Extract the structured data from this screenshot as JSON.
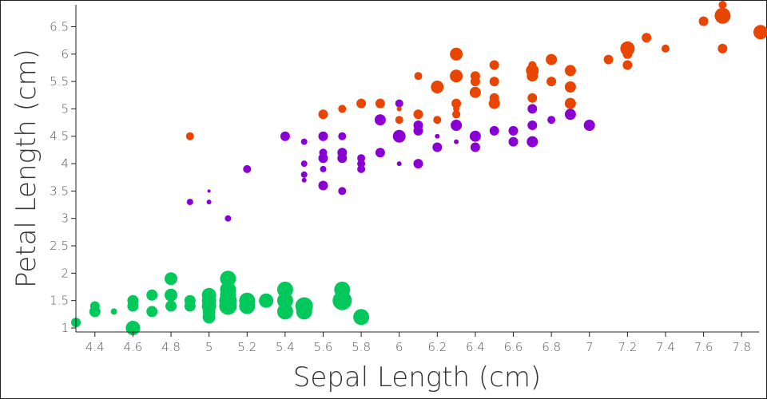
{
  "chart_data": {
    "type": "scatter",
    "title": "",
    "xlabel": "Sepal Length (cm)",
    "ylabel": "Petal Length (cm)",
    "xlim": [
      4.3,
      7.9
    ],
    "ylim": [
      1.0,
      6.9
    ],
    "x_ticks": [
      "4.4",
      "4.6",
      "4.8",
      "5",
      "5.2",
      "5.4",
      "5.6",
      "5.8",
      "6",
      "6.2",
      "6.4",
      "6.6",
      "6.8",
      "7",
      "7.2",
      "7.4",
      "7.6",
      "7.8"
    ],
    "y_ticks": [
      "1",
      "1.5",
      "2",
      "2.5",
      "3",
      "3.5",
      "4",
      "4.5",
      "5",
      "5.5",
      "6",
      "6.5"
    ],
    "grid": false,
    "legend": "none",
    "size_encoding": "point size varies by a third variable",
    "series": [
      {
        "color": "#00c85a",
        "points": [
          [
            4.3,
            1.1,
            6
          ],
          [
            4.4,
            1.4,
            6
          ],
          [
            4.4,
            1.3,
            7
          ],
          [
            4.5,
            1.3,
            4
          ],
          [
            4.6,
            1.5,
            7
          ],
          [
            4.6,
            1.4,
            7
          ],
          [
            4.6,
            1.0,
            9
          ],
          [
            4.7,
            1.6,
            7
          ],
          [
            4.7,
            1.3,
            7
          ],
          [
            4.8,
            1.9,
            8
          ],
          [
            4.8,
            1.6,
            8
          ],
          [
            4.8,
            1.4,
            7
          ],
          [
            4.9,
            1.5,
            7
          ],
          [
            4.9,
            1.4,
            7
          ],
          [
            5.0,
            1.6,
            9
          ],
          [
            5.0,
            1.5,
            9
          ],
          [
            5.0,
            1.4,
            9
          ],
          [
            5.0,
            1.3,
            8
          ],
          [
            5.0,
            1.2,
            8
          ],
          [
            5.1,
            1.9,
            10
          ],
          [
            5.1,
            1.7,
            10
          ],
          [
            5.1,
            1.6,
            10
          ],
          [
            5.1,
            1.5,
            11
          ],
          [
            5.1,
            1.4,
            11
          ],
          [
            5.2,
            1.5,
            10
          ],
          [
            5.2,
            1.4,
            10
          ],
          [
            5.3,
            1.5,
            9
          ],
          [
            5.4,
            1.7,
            10
          ],
          [
            5.4,
            1.5,
            10
          ],
          [
            5.4,
            1.3,
            10
          ],
          [
            5.5,
            1.4,
            11
          ],
          [
            5.5,
            1.3,
            10
          ],
          [
            5.7,
            1.7,
            10
          ],
          [
            5.7,
            1.5,
            12
          ],
          [
            5.8,
            1.2,
            10
          ]
        ]
      },
      {
        "color": "#8a00d4",
        "points": [
          [
            4.9,
            3.3,
            4
          ],
          [
            5.0,
            3.5,
            2
          ],
          [
            5.0,
            3.3,
            3
          ],
          [
            5.1,
            3.0,
            4
          ],
          [
            5.2,
            3.9,
            5
          ],
          [
            5.4,
            4.5,
            6
          ],
          [
            5.5,
            4.4,
            4
          ],
          [
            5.5,
            4.0,
            4
          ],
          [
            5.5,
            3.8,
            4
          ],
          [
            5.5,
            3.7,
            3
          ],
          [
            5.6,
            4.5,
            6
          ],
          [
            5.6,
            4.2,
            5
          ],
          [
            5.6,
            4.1,
            6
          ],
          [
            5.6,
            3.9,
            4
          ],
          [
            5.6,
            3.6,
            6
          ],
          [
            5.7,
            4.5,
            5
          ],
          [
            5.7,
            4.2,
            6
          ],
          [
            5.7,
            4.1,
            6
          ],
          [
            5.7,
            3.5,
            5
          ],
          [
            5.8,
            4.1,
            5
          ],
          [
            5.8,
            4.0,
            5
          ],
          [
            5.8,
            3.9,
            5
          ],
          [
            5.9,
            4.8,
            7
          ],
          [
            5.9,
            4.2,
            6
          ],
          [
            6.0,
            5.1,
            5
          ],
          [
            6.0,
            5.0,
            3
          ],
          [
            6.0,
            4.5,
            8
          ],
          [
            6.0,
            4.0,
            3
          ],
          [
            6.1,
            4.7,
            6
          ],
          [
            6.1,
            4.6,
            6
          ],
          [
            6.1,
            4.0,
            6
          ],
          [
            6.2,
            4.5,
            3
          ],
          [
            6.2,
            4.3,
            6
          ],
          [
            6.3,
            4.9,
            5
          ],
          [
            6.3,
            4.7,
            7
          ],
          [
            6.3,
            4.4,
            3
          ],
          [
            6.4,
            4.5,
            7
          ],
          [
            6.4,
            4.3,
            6
          ],
          [
            6.5,
            4.6,
            6
          ],
          [
            6.6,
            4.6,
            6
          ],
          [
            6.6,
            4.4,
            6
          ],
          [
            6.7,
            5.0,
            6
          ],
          [
            6.7,
            4.7,
            6
          ],
          [
            6.7,
            4.4,
            7
          ],
          [
            6.8,
            4.8,
            5
          ],
          [
            6.9,
            4.9,
            7
          ],
          [
            7.0,
            4.7,
            7
          ]
        ]
      },
      {
        "color": "#e84500",
        "points": [
          [
            4.9,
            4.5,
            5
          ],
          [
            5.6,
            4.9,
            6
          ],
          [
            5.7,
            5.0,
            5
          ],
          [
            5.8,
            5.1,
            6
          ],
          [
            5.9,
            5.1,
            6
          ],
          [
            6.0,
            5.0,
            3
          ],
          [
            6.0,
            4.8,
            5
          ],
          [
            6.1,
            5.6,
            5
          ],
          [
            6.1,
            4.9,
            6
          ],
          [
            6.2,
            5.4,
            8
          ],
          [
            6.2,
            4.8,
            5
          ],
          [
            6.3,
            6.0,
            8
          ],
          [
            6.3,
            5.6,
            8
          ],
          [
            6.3,
            5.1,
            6
          ],
          [
            6.3,
            5.0,
            4
          ],
          [
            6.3,
            4.9,
            5
          ],
          [
            6.4,
            5.6,
            6
          ],
          [
            6.4,
            5.5,
            6
          ],
          [
            6.4,
            5.3,
            7
          ],
          [
            6.5,
            5.8,
            6
          ],
          [
            6.5,
            5.5,
            6
          ],
          [
            6.5,
            5.2,
            6
          ],
          [
            6.5,
            5.1,
            7
          ],
          [
            6.7,
            5.8,
            5
          ],
          [
            6.7,
            5.7,
            8
          ],
          [
            6.7,
            5.6,
            7
          ],
          [
            6.7,
            5.2,
            6
          ],
          [
            6.8,
            5.9,
            7
          ],
          [
            6.8,
            5.5,
            6
          ],
          [
            6.9,
            5.7,
            7
          ],
          [
            6.9,
            5.4,
            7
          ],
          [
            6.9,
            5.1,
            7
          ],
          [
            7.1,
            5.9,
            6
          ],
          [
            7.2,
            6.1,
            9
          ],
          [
            7.2,
            6.0,
            6
          ],
          [
            7.2,
            5.8,
            6
          ],
          [
            7.3,
            6.3,
            6
          ],
          [
            7.4,
            6.1,
            5
          ],
          [
            7.6,
            6.6,
            6
          ],
          [
            7.7,
            6.9,
            5
          ],
          [
            7.7,
            6.7,
            10
          ],
          [
            7.7,
            6.1,
            6
          ],
          [
            7.9,
            6.4,
            9
          ]
        ]
      }
    ]
  }
}
